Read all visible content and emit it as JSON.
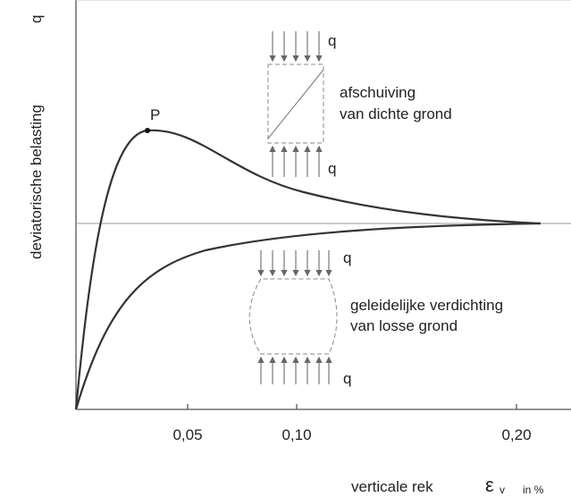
{
  "axes": {
    "y_label": "deviatorische belasting",
    "y_symbol": "q",
    "x_label": "verticale rek",
    "x_symbol": "ε",
    "x_subscript": "v",
    "x_unit": "in %"
  },
  "x_ticks": [
    "0,05",
    "0,10",
    "0,20"
  ],
  "peak_label": "P",
  "dense": {
    "load_top": "q",
    "load_bottom": "q",
    "lines": [
      "afschuiving",
      "van dichte grond"
    ]
  },
  "loose": {
    "load_top": "q",
    "load_bottom": "q",
    "lines": [
      "geleidelijke verdichting",
      "van losse grond"
    ]
  }
}
